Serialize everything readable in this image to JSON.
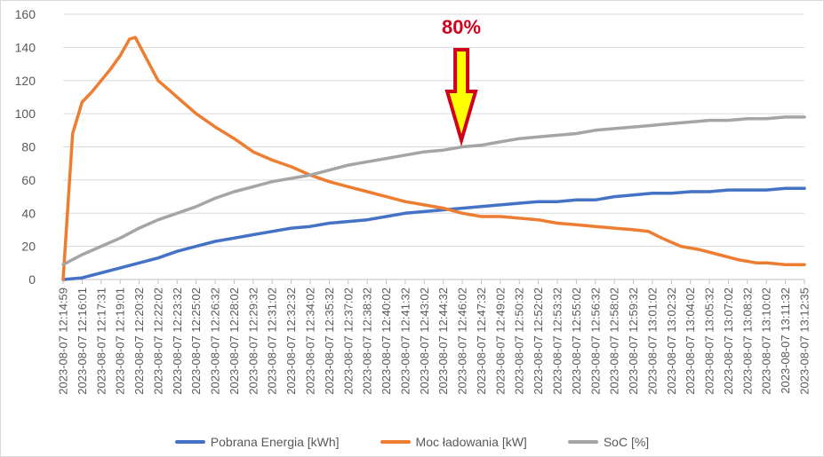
{
  "chart_data": {
    "type": "line",
    "title": "",
    "xlabel": "",
    "ylabel": "",
    "ylim": [
      0,
      160
    ],
    "yticks": [
      0,
      20,
      40,
      60,
      80,
      100,
      120,
      140,
      160
    ],
    "grid": true,
    "legend_position": "bottom",
    "x_tick_labels": [
      "2023-08-07 12:14:59",
      "2023-08-07 12:16:01",
      "2023-08-07 12:17:31",
      "2023-08-07 12:19:01",
      "2023-08-07 12:20:32",
      "2023-08-07 12:22:02",
      "2023-08-07 12:23:32",
      "2023-08-07 12:25:02",
      "2023-08-07 12:26:32",
      "2023-08-07 12:28:02",
      "2023-08-07 12:29:32",
      "2023-08-07 12:31:02",
      "2023-08-07 12:32:32",
      "2023-08-07 12:34:02",
      "2023-08-07 12:35:32",
      "2023-08-07 12:37:02",
      "2023-08-07 12:38:32",
      "2023-08-07 12:40:02",
      "2023-08-07 12:41:32",
      "2023-08-07 12:43:02",
      "2023-08-07 12:44:32",
      "2023-08-07 12:46:02",
      "2023-08-07 12:47:32",
      "2023-08-07 12:49:02",
      "2023-08-07 12:50:32",
      "2023-08-07 12:52:02",
      "2023-08-07 12:53:32",
      "2023-08-07 12:55:02",
      "2023-08-07 12:56:32",
      "2023-08-07 12:58:02",
      "2023-08-07 12:59:32",
      "2023-08-07 13:01:02",
      "2023-08-07 13:02:32",
      "2023-08-07 13:04:02",
      "2023-08-07 13:05:32",
      "2023-08-07 13:07:02",
      "2023-08-07 13:08:32",
      "2023-08-07 13:10:02",
      "2023-08-07 13:11:32",
      "2023-08-07 13:12:35"
    ],
    "series": [
      {
        "name": "Pobrana Energia [kWh]",
        "color": "#4472c4",
        "points": [
          [
            0,
            0
          ],
          [
            1,
            1
          ],
          [
            2,
            4
          ],
          [
            3,
            7
          ],
          [
            4,
            10
          ],
          [
            5,
            13
          ],
          [
            6,
            17
          ],
          [
            7,
            20
          ],
          [
            8,
            23
          ],
          [
            9,
            25
          ],
          [
            10,
            27
          ],
          [
            11,
            29
          ],
          [
            12,
            31
          ],
          [
            13,
            32
          ],
          [
            14,
            34
          ],
          [
            15,
            35
          ],
          [
            16,
            36
          ],
          [
            17,
            38
          ],
          [
            18,
            40
          ],
          [
            19,
            41
          ],
          [
            20,
            42
          ],
          [
            21,
            43
          ],
          [
            22,
            44
          ],
          [
            23,
            45
          ],
          [
            24,
            46
          ],
          [
            25,
            47
          ],
          [
            26,
            47
          ],
          [
            27,
            48
          ],
          [
            28,
            48
          ],
          [
            29,
            50
          ],
          [
            30,
            51
          ],
          [
            31,
            52
          ],
          [
            32,
            52
          ],
          [
            33,
            53
          ],
          [
            34,
            53
          ],
          [
            35,
            54
          ],
          [
            36,
            54
          ],
          [
            37,
            54
          ],
          [
            38,
            55
          ],
          [
            39,
            55
          ]
        ]
      },
      {
        "name": "Moc ładowania [kW]",
        "color": "#ed7d31",
        "points": [
          [
            0,
            0
          ],
          [
            0.5,
            88
          ],
          [
            1,
            107
          ],
          [
            1.5,
            113
          ],
          [
            2,
            120
          ],
          [
            2.5,
            127
          ],
          [
            3,
            135
          ],
          [
            3.5,
            145
          ],
          [
            3.8,
            146
          ],
          [
            4.3,
            135
          ],
          [
            5,
            120
          ],
          [
            5.5,
            115
          ],
          [
            6,
            110
          ],
          [
            6.5,
            105
          ],
          [
            7,
            100
          ],
          [
            8,
            92
          ],
          [
            9,
            85
          ],
          [
            10,
            77
          ],
          [
            11,
            72
          ],
          [
            12,
            68
          ],
          [
            13,
            63
          ],
          [
            14,
            59
          ],
          [
            15,
            56
          ],
          [
            16,
            53
          ],
          [
            17,
            50
          ],
          [
            18,
            47
          ],
          [
            19,
            45
          ],
          [
            20,
            43
          ],
          [
            21,
            40
          ],
          [
            22,
            38
          ],
          [
            23,
            38
          ],
          [
            24,
            37
          ],
          [
            25,
            36
          ],
          [
            26,
            34
          ],
          [
            27,
            33
          ],
          [
            28,
            32
          ],
          [
            29,
            31
          ],
          [
            30,
            30
          ],
          [
            30.8,
            29
          ],
          [
            31.5,
            25
          ],
          [
            32.5,
            20
          ],
          [
            33.5,
            18
          ],
          [
            34.5,
            15
          ],
          [
            35.5,
            12
          ],
          [
            36.5,
            10
          ],
          [
            37,
            10
          ],
          [
            38,
            9
          ],
          [
            39,
            9
          ]
        ]
      },
      {
        "name": "SoC [%]",
        "color": "#a5a5a5",
        "points": [
          [
            0,
            9
          ],
          [
            1,
            15
          ],
          [
            2,
            20
          ],
          [
            3,
            25
          ],
          [
            4,
            31
          ],
          [
            5,
            36
          ],
          [
            6,
            40
          ],
          [
            7,
            44
          ],
          [
            8,
            49
          ],
          [
            9,
            53
          ],
          [
            10,
            56
          ],
          [
            11,
            59
          ],
          [
            12,
            61
          ],
          [
            13,
            63
          ],
          [
            14,
            66
          ],
          [
            15,
            69
          ],
          [
            16,
            71
          ],
          [
            17,
            73
          ],
          [
            18,
            75
          ],
          [
            19,
            77
          ],
          [
            20,
            78
          ],
          [
            21,
            80
          ],
          [
            22,
            81
          ],
          [
            23,
            83
          ],
          [
            24,
            85
          ],
          [
            25,
            86
          ],
          [
            26,
            87
          ],
          [
            27,
            88
          ],
          [
            28,
            90
          ],
          [
            29,
            91
          ],
          [
            30,
            92
          ],
          [
            31,
            93
          ],
          [
            32,
            94
          ],
          [
            33,
            95
          ],
          [
            34,
            96
          ],
          [
            35,
            96
          ],
          [
            36,
            97
          ],
          [
            37,
            97
          ],
          [
            38,
            98
          ],
          [
            39,
            98
          ]
        ]
      }
    ],
    "annotations": [
      {
        "text": "80%",
        "color": "#d0021b",
        "arrow_fill": "#ffff00",
        "arrow_stroke": "#d0021b",
        "x_index": 21
      }
    ]
  }
}
